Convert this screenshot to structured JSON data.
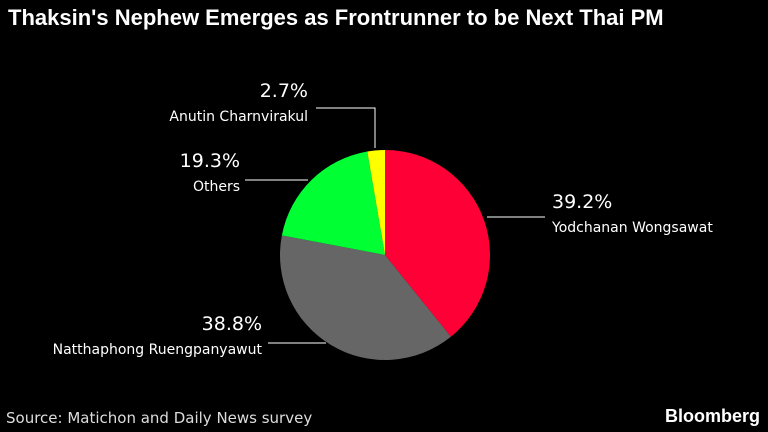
{
  "chart_data": {
    "type": "pie",
    "title": "Thaksin's Nephew Emerges as Frontrunner to be Next Thai PM",
    "categories": [
      "Yodchanan Wongsawat",
      "Natthaphong Ruengpanyawut",
      "Others",
      "Anutin Charnvirakul"
    ],
    "values": [
      39.2,
      38.8,
      19.3,
      2.7
    ],
    "value_labels": [
      "39.2%",
      "38.8%",
      "19.3%",
      "2.7%"
    ],
    "colors": [
      "#ff0036",
      "#666666",
      "#00ff33",
      "#ffff00"
    ],
    "source": "Source: Matichon and Daily News survey",
    "brand": "Bloomberg"
  }
}
